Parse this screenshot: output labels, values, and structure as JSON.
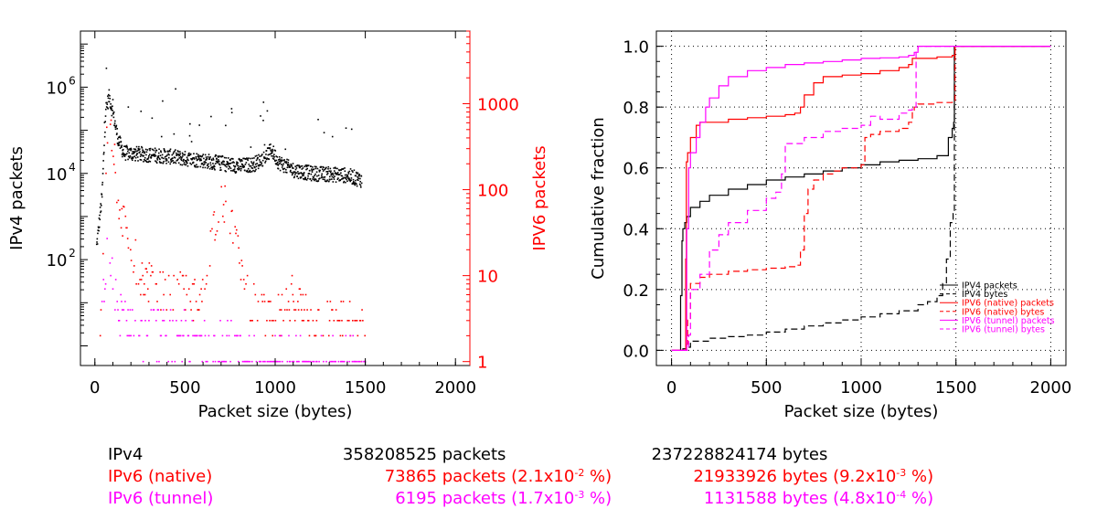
{
  "colors": {
    "ipv4": "#000000",
    "ipv6_native": "#ff0000",
    "ipv6_tunnel": "#ff00ff"
  },
  "chart_data": [
    {
      "type": "scatter",
      "xlabel": "Packet size (bytes)",
      "ylabel": "IPv4 packets",
      "y2label": "IPV6 packets",
      "xlim": [
        -80,
        2080
      ],
      "xticks": [
        "0",
        "500",
        "1000",
        "1500",
        "2000"
      ],
      "ylog": true,
      "ylim": [
        0.35,
        20000000
      ],
      "yticks": [
        "10",
        "10",
        "10"
      ],
      "ytick_exponents": [
        "2",
        "4",
        "6"
      ],
      "y2log": true,
      "y2lim": [
        0.9,
        7000
      ],
      "y2ticks": [
        "1",
        "10",
        "100",
        "1000"
      ],
      "series": [
        {
          "name": "IPv4",
          "axis": "left",
          "color": "#000000",
          "profile": [
            [
              10,
              200
            ],
            [
              40,
              3000
            ],
            [
              60,
              300000
            ],
            [
              80,
              600000
            ],
            [
              100,
              250000
            ],
            [
              130,
              60000
            ],
            [
              160,
              30000
            ],
            [
              250,
              28000
            ],
            [
              400,
              25000
            ],
            [
              500,
              22000
            ],
            [
              600,
              20000
            ],
            [
              700,
              17000
            ],
            [
              800,
              15000
            ],
            [
              880,
              16000
            ],
            [
              950,
              25000
            ],
            [
              980,
              35000
            ],
            [
              1020,
              18000
            ],
            [
              1100,
              12000
            ],
            [
              1200,
              10000
            ],
            [
              1300,
              9500
            ],
            [
              1400,
              9000
            ],
            [
              1480,
              7000
            ]
          ]
        },
        {
          "name": "IPv6 (native)",
          "axis": "right",
          "color": "#ff0000",
          "profile": [
            [
              30,
              3
            ],
            [
              60,
              200
            ],
            [
              80,
              1500
            ],
            [
              100,
              300
            ],
            [
              130,
              80
            ],
            [
              180,
              30
            ],
            [
              250,
              10
            ],
            [
              400,
              6
            ],
            [
              600,
              6
            ],
            [
              660,
              40
            ],
            [
              700,
              80
            ],
            [
              750,
              50
            ],
            [
              800,
              20
            ],
            [
              850,
              5
            ],
            [
              1000,
              3
            ],
            [
              1100,
              6
            ],
            [
              1200,
              3
            ],
            [
              1400,
              3
            ],
            [
              1500,
              2
            ]
          ]
        },
        {
          "name": "IPv6 (tunnel)",
          "axis": "right",
          "color": "#ff00ff",
          "profile": [
            [
              40,
              3
            ],
            [
              70,
              25
            ],
            [
              100,
              8
            ],
            [
              150,
              3
            ],
            [
              300,
              2.5
            ],
            [
              500,
              2
            ],
            [
              700,
              2
            ],
            [
              800,
              1.5
            ],
            [
              900,
              1
            ],
            [
              1500,
              1
            ]
          ]
        }
      ]
    },
    {
      "type": "line",
      "xlabel": "Packet size (bytes)",
      "ylabel": "Cumulative fraction",
      "xlim": [
        -80,
        2080
      ],
      "ylim": [
        -0.05,
        1.05
      ],
      "xticks": [
        "0",
        "500",
        "1000",
        "1500",
        "2000"
      ],
      "yticks": [
        "0.0",
        "0.2",
        "0.4",
        "0.6",
        "0.8",
        "1.0"
      ],
      "grid": true,
      "legend": "bottom-right",
      "series": [
        {
          "name": "IPV4 packets",
          "color": "#000000",
          "dash": false,
          "x": [
            0,
            40,
            48,
            55,
            60,
            70,
            80,
            100,
            150,
            200,
            300,
            400,
            500,
            600,
            700,
            800,
            900,
            1000,
            1100,
            1200,
            1300,
            1400,
            1460,
            1480,
            1488,
            1492,
            1500,
            2000
          ],
          "y": [
            0,
            0,
            0.18,
            0.36,
            0.4,
            0.42,
            0.44,
            0.47,
            0.49,
            0.51,
            0.53,
            0.545,
            0.56,
            0.57,
            0.58,
            0.59,
            0.6,
            0.61,
            0.62,
            0.625,
            0.63,
            0.64,
            0.7,
            0.73,
            0.75,
            1.0,
            1.0,
            1.0
          ]
        },
        {
          "name": "IPV4 bytes",
          "color": "#000000",
          "dash": true,
          "x": [
            0,
            40,
            60,
            80,
            100,
            200,
            300,
            400,
            500,
            600,
            700,
            800,
            900,
            1000,
            1100,
            1200,
            1300,
            1350,
            1400,
            1430,
            1450,
            1470,
            1485,
            1492,
            1500,
            2000
          ],
          "y": [
            0,
            0,
            0.005,
            0.01,
            0.03,
            0.04,
            0.045,
            0.05,
            0.06,
            0.07,
            0.08,
            0.09,
            0.1,
            0.11,
            0.12,
            0.13,
            0.15,
            0.16,
            0.18,
            0.22,
            0.3,
            0.42,
            0.45,
            1.0,
            1.0,
            1.0
          ]
        },
        {
          "name": "IPV6 (native) packets",
          "color": "#ff0000",
          "dash": false,
          "x": [
            0,
            60,
            75,
            78,
            85,
            100,
            130,
            150,
            200,
            300,
            400,
            500,
            600,
            650,
            680,
            700,
            750,
            800,
            900,
            1000,
            1100,
            1200,
            1250,
            1270,
            1300,
            1400,
            1480,
            1495,
            1500,
            2000
          ],
          "y": [
            0,
            0,
            0.3,
            0.62,
            0.65,
            0.7,
            0.74,
            0.75,
            0.75,
            0.76,
            0.765,
            0.77,
            0.775,
            0.78,
            0.8,
            0.84,
            0.88,
            0.9,
            0.905,
            0.91,
            0.92,
            0.93,
            0.94,
            0.96,
            0.96,
            0.965,
            0.97,
            1.0,
            1.0,
            1.0
          ]
        },
        {
          "name": "IPV6 (native) bytes",
          "color": "#ff0000",
          "dash": true,
          "x": [
            0,
            60,
            80,
            85,
            100,
            150,
            200,
            300,
            400,
            500,
            600,
            650,
            680,
            700,
            720,
            750,
            800,
            850,
            900,
            1000,
            1020,
            1050,
            1100,
            1200,
            1250,
            1270,
            1280,
            1300,
            1400,
            1480,
            1495,
            1500,
            2000
          ],
          "y": [
            0,
            0,
            0.02,
            0.1,
            0.22,
            0.24,
            0.25,
            0.26,
            0.265,
            0.27,
            0.275,
            0.28,
            0.33,
            0.45,
            0.53,
            0.56,
            0.58,
            0.59,
            0.6,
            0.61,
            0.7,
            0.71,
            0.72,
            0.73,
            0.75,
            0.79,
            0.8,
            0.81,
            0.815,
            0.82,
            1.0,
            1.0,
            1.0
          ]
        },
        {
          "name": "IPV6 (tunnel) packets",
          "color": "#ff00ff",
          "dash": false,
          "x": [
            0,
            60,
            80,
            90,
            100,
            130,
            150,
            180,
            200,
            250,
            300,
            400,
            500,
            600,
            700,
            800,
            900,
            1000,
            1100,
            1200,
            1250,
            1280,
            1300,
            1400,
            1500,
            2000
          ],
          "y": [
            0,
            0,
            0.4,
            0.6,
            0.65,
            0.7,
            0.75,
            0.8,
            0.83,
            0.87,
            0.9,
            0.92,
            0.93,
            0.94,
            0.945,
            0.95,
            0.955,
            0.96,
            0.962,
            0.965,
            0.97,
            0.98,
            1.0,
            1.0,
            1.0,
            1.0
          ]
        },
        {
          "name": "IPV6 (tunnel) bytes",
          "color": "#ff00ff",
          "dash": true,
          "x": [
            0,
            60,
            90,
            100,
            150,
            200,
            250,
            300,
            400,
            500,
            550,
            580,
            600,
            700,
            800,
            900,
            1000,
            1050,
            1100,
            1200,
            1250,
            1270,
            1290,
            1300,
            1400,
            1500,
            2000
          ],
          "y": [
            0,
            0,
            0.05,
            0.2,
            0.25,
            0.33,
            0.38,
            0.42,
            0.46,
            0.5,
            0.52,
            0.58,
            0.68,
            0.7,
            0.72,
            0.73,
            0.74,
            0.77,
            0.76,
            0.78,
            0.79,
            0.8,
            0.99,
            1.0,
            1.0,
            1.0,
            1.0
          ]
        }
      ]
    }
  ],
  "stats": {
    "ipv4": {
      "name": "IPv4",
      "packets": "358208525",
      "packets_label": "packets",
      "bytes": "237228824174",
      "bytes_label": "bytes"
    },
    "ipv6_native": {
      "name": "IPv6 (native)",
      "packets": "73865",
      "packets_label": "packets",
      "packets_pct_mantissa": "(2.1x10",
      "packets_pct_exp": "-2",
      "packets_pct_unit": " %)",
      "bytes": "21933926",
      "bytes_label": "bytes",
      "bytes_pct_mantissa": "(9.2x10",
      "bytes_pct_exp": "-3",
      "bytes_pct_unit": " %)"
    },
    "ipv6_tunnel": {
      "name": "IPv6 (tunnel)",
      "packets": "6195",
      "packets_label": "packets",
      "packets_pct_mantissa": "(1.7x10",
      "packets_pct_exp": "-3",
      "packets_pct_unit": " %)",
      "bytes": "1131588",
      "bytes_label": "bytes",
      "bytes_pct_mantissa": "(4.8x10",
      "bytes_pct_exp": "-4",
      "bytes_pct_unit": " %)"
    }
  }
}
